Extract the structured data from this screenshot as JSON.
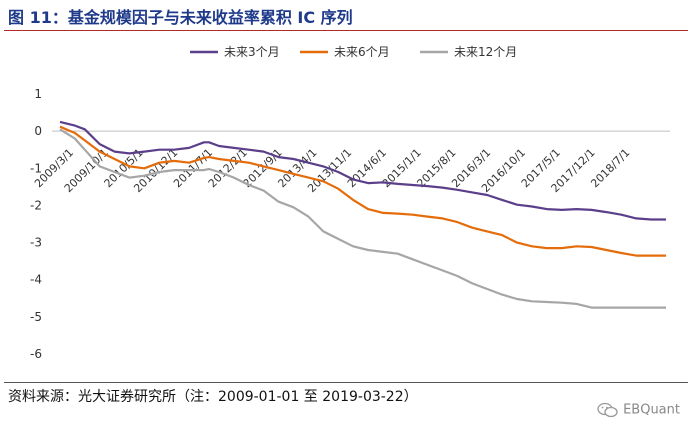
{
  "header": {
    "title": "图 11：基金规模因子与未来收益率累积 IC 序列"
  },
  "footer": {
    "source": "资料来源：光大证券研究所（注：2009-01-01 至 2019-03-22）",
    "watermark": "EBQuant"
  },
  "colors": {
    "title": "#1f3a8a",
    "rule": "#b02a2a",
    "series_3m": "#5b3f8a",
    "series_6m": "#e46c0a",
    "series_12m": "#a6a6a6"
  },
  "chart_data": {
    "type": "line",
    "title": "",
    "xlabel": "",
    "ylabel": "",
    "ylim": [
      -6,
      1
    ],
    "yticks": [
      1,
      0,
      -1,
      -2,
      -3,
      -4,
      -5,
      -6
    ],
    "grid": false,
    "legend_position": "top-center",
    "x_labels": [
      "2009/3/1",
      "2009/10/1",
      "2010/5/1",
      "2010/12/1",
      "2011/7/1",
      "2012/2/1",
      "2012/9/1",
      "2013/4/1",
      "2013/11/1",
      "2014/6/1",
      "2015/1/1",
      "2015/8/1",
      "2016/3/1",
      "2016/10/1",
      "2017/5/1",
      "2017/12/1",
      "2018/7/1"
    ],
    "x": [
      0,
      1,
      2,
      3,
      4,
      5,
      6,
      7,
      8,
      9,
      10,
      11,
      12,
      13,
      14,
      15,
      16,
      17,
      18,
      19,
      20,
      21,
      22,
      23,
      24,
      25,
      26,
      27,
      28,
      29,
      30,
      31,
      32,
      33,
      34,
      35,
      36,
      37,
      38,
      39,
      40,
      41,
      42,
      43,
      44,
      45,
      46,
      47,
      48,
      49,
      50,
      51,
      52,
      53,
      54,
      55,
      56,
      57,
      58,
      59,
      60,
      61,
      62,
      63,
      64,
      65,
      66,
      67,
      68,
      69,
      70,
      71,
      72,
      73,
      74,
      75,
      76,
      77,
      78,
      79,
      80,
      81,
      82,
      83,
      84,
      85,
      86,
      87,
      88,
      89,
      90,
      91,
      92,
      93,
      94,
      95,
      96,
      97,
      98,
      99,
      100,
      101,
      102,
      103,
      104,
      105,
      106,
      107,
      108,
      109,
      110,
      111,
      112,
      113,
      114,
      115,
      116,
      117,
      118,
      119,
      120,
      121,
      122
    ],
    "series": [
      {
        "name": "未来3个月",
        "color": "#5b3f8a",
        "points": [
          [
            0,
            0.25
          ],
          [
            3,
            0.15
          ],
          [
            5,
            0.05
          ],
          [
            8,
            -0.35
          ],
          [
            11,
            -0.55
          ],
          [
            14,
            -0.6
          ],
          [
            17,
            -0.55
          ],
          [
            20,
            -0.5
          ],
          [
            23,
            -0.5
          ],
          [
            26,
            -0.45
          ],
          [
            29,
            -0.3
          ],
          [
            30,
            -0.3
          ],
          [
            32,
            -0.4
          ],
          [
            35,
            -0.45
          ],
          [
            38,
            -0.5
          ],
          [
            41,
            -0.55
          ],
          [
            44,
            -0.7
          ],
          [
            47,
            -0.75
          ],
          [
            50,
            -0.85
          ],
          [
            53,
            -0.95
          ],
          [
            56,
            -1.1
          ],
          [
            59,
            -1.3
          ],
          [
            62,
            -1.4
          ],
          [
            65,
            -1.38
          ],
          [
            68,
            -1.42
          ],
          [
            71,
            -1.45
          ],
          [
            74,
            -1.48
          ],
          [
            77,
            -1.52
          ],
          [
            80,
            -1.58
          ],
          [
            83,
            -1.65
          ],
          [
            86,
            -1.72
          ],
          [
            89,
            -1.85
          ],
          [
            92,
            -1.98
          ],
          [
            95,
            -2.03
          ],
          [
            98,
            -2.1
          ],
          [
            101,
            -2.12
          ],
          [
            104,
            -2.1
          ],
          [
            107,
            -2.12
          ],
          [
            110,
            -2.18
          ],
          [
            113,
            -2.25
          ],
          [
            116,
            -2.35
          ],
          [
            119,
            -2.38
          ],
          [
            122,
            -2.38
          ]
        ]
      },
      {
        "name": "未来6个月",
        "color": "#e46c0a",
        "points": [
          [
            0,
            0.12
          ],
          [
            3,
            -0.05
          ],
          [
            5,
            -0.25
          ],
          [
            8,
            -0.55
          ],
          [
            11,
            -0.75
          ],
          [
            14,
            -0.95
          ],
          [
            17,
            -1.0
          ],
          [
            20,
            -0.85
          ],
          [
            23,
            -0.8
          ],
          [
            26,
            -0.85
          ],
          [
            29,
            -0.72
          ],
          [
            30,
            -0.7
          ],
          [
            32,
            -0.75
          ],
          [
            35,
            -0.8
          ],
          [
            38,
            -0.85
          ],
          [
            41,
            -0.95
          ],
          [
            44,
            -1.05
          ],
          [
            47,
            -1.15
          ],
          [
            50,
            -1.25
          ],
          [
            53,
            -1.35
          ],
          [
            56,
            -1.55
          ],
          [
            59,
            -1.85
          ],
          [
            62,
            -2.1
          ],
          [
            65,
            -2.2
          ],
          [
            68,
            -2.22
          ],
          [
            71,
            -2.25
          ],
          [
            74,
            -2.3
          ],
          [
            77,
            -2.35
          ],
          [
            80,
            -2.45
          ],
          [
            83,
            -2.6
          ],
          [
            86,
            -2.7
          ],
          [
            89,
            -2.8
          ],
          [
            92,
            -3.0
          ],
          [
            95,
            -3.1
          ],
          [
            98,
            -3.15
          ],
          [
            101,
            -3.15
          ],
          [
            104,
            -3.1
          ],
          [
            107,
            -3.12
          ],
          [
            110,
            -3.2
          ],
          [
            113,
            -3.28
          ],
          [
            116,
            -3.35
          ],
          [
            119,
            -3.35
          ],
          [
            122,
            -3.35
          ]
        ]
      },
      {
        "name": "未来12个月",
        "color": "#a6a6a6",
        "points": [
          [
            0,
            0.05
          ],
          [
            3,
            -0.2
          ],
          [
            5,
            -0.5
          ],
          [
            8,
            -0.95
          ],
          [
            11,
            -1.1
          ],
          [
            14,
            -1.25
          ],
          [
            17,
            -1.2
          ],
          [
            20,
            -1.1
          ],
          [
            23,
            -1.05
          ],
          [
            26,
            -1.05
          ],
          [
            29,
            -1.05
          ],
          [
            30,
            -1.02
          ],
          [
            32,
            -1.1
          ],
          [
            35,
            -1.25
          ],
          [
            38,
            -1.45
          ],
          [
            41,
            -1.6
          ],
          [
            44,
            -1.9
          ],
          [
            47,
            -2.05
          ],
          [
            50,
            -2.3
          ],
          [
            53,
            -2.7
          ],
          [
            56,
            -2.9
          ],
          [
            59,
            -3.1
          ],
          [
            62,
            -3.2
          ],
          [
            65,
            -3.25
          ],
          [
            68,
            -3.3
          ],
          [
            71,
            -3.45
          ],
          [
            74,
            -3.6
          ],
          [
            77,
            -3.75
          ],
          [
            80,
            -3.9
          ],
          [
            83,
            -4.1
          ],
          [
            86,
            -4.25
          ],
          [
            89,
            -4.4
          ],
          [
            92,
            -4.52
          ],
          [
            95,
            -4.58
          ],
          [
            98,
            -4.6
          ],
          [
            101,
            -4.62
          ],
          [
            104,
            -4.65
          ],
          [
            107,
            -4.75
          ],
          [
            110,
            -4.75
          ],
          [
            113,
            -4.75
          ],
          [
            116,
            -4.75
          ],
          [
            119,
            -4.75
          ],
          [
            122,
            -4.75
          ]
        ]
      }
    ]
  }
}
